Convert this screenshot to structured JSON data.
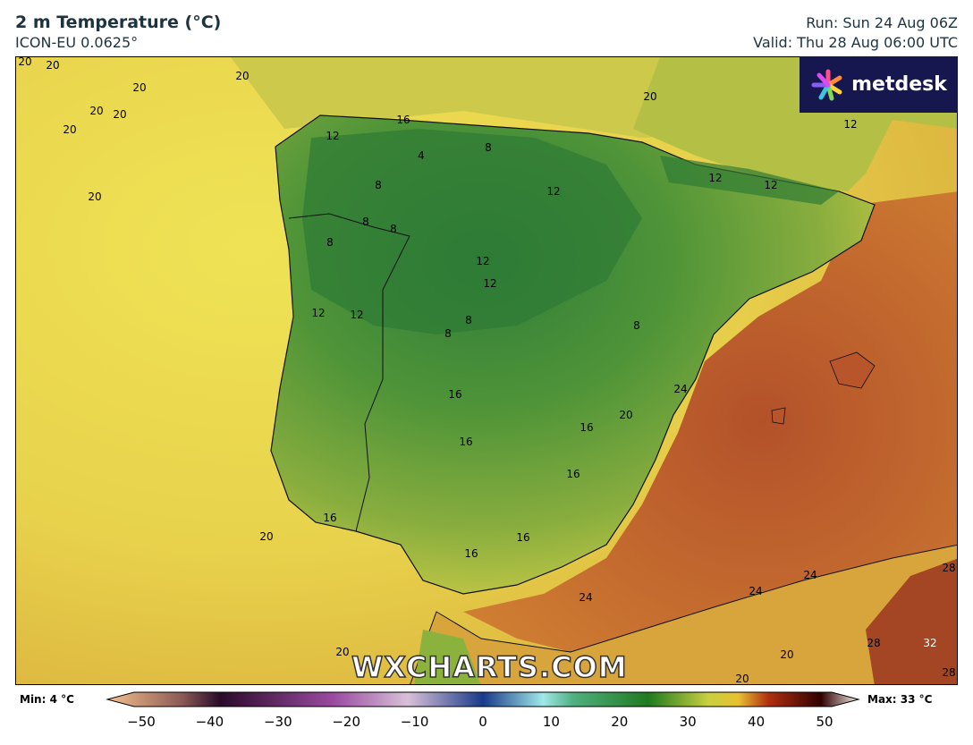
{
  "header": {
    "title": "2 m Temperature (°C)",
    "model": "ICON-EU 0.0625°",
    "run": "Run: Sun 24 Aug 06Z",
    "valid": "Valid: Thu 28 Aug 06:00 UTC"
  },
  "logo": {
    "text": "metdesk"
  },
  "watermark": "WXCHARTS.COM",
  "colorbar": {
    "min_label": "Min: 4 °C",
    "max_label": "Max: 33 °C",
    "ticks": [
      "−50",
      "−40",
      "−30",
      "−20",
      "−10",
      "0",
      "10",
      "20",
      "30",
      "40",
      "50"
    ],
    "range": [
      -50,
      50
    ],
    "unit": "°C"
  },
  "contour_labels": [
    "20",
    "20",
    "20",
    "20",
    "20",
    "20",
    "20",
    "20",
    "20",
    "16",
    "12",
    "4",
    "8",
    "8",
    "8",
    "8",
    "8",
    "12",
    "12",
    "12",
    "12",
    "12",
    "8",
    "8",
    "12",
    "12",
    "8",
    "12",
    "16",
    "24",
    "20",
    "16",
    "16",
    "16",
    "16",
    "16",
    "16",
    "20",
    "24",
    "24",
    "24",
    "28",
    "28",
    "32",
    "28",
    "20",
    "20",
    "20"
  ],
  "colors": {
    "sea_atlantic": "#ecdd55",
    "land_cool": "#3d8a33",
    "land_mild": "#8db23e",
    "mediterranean": "#c0632c",
    "africa_hot": "#9b3520"
  }
}
